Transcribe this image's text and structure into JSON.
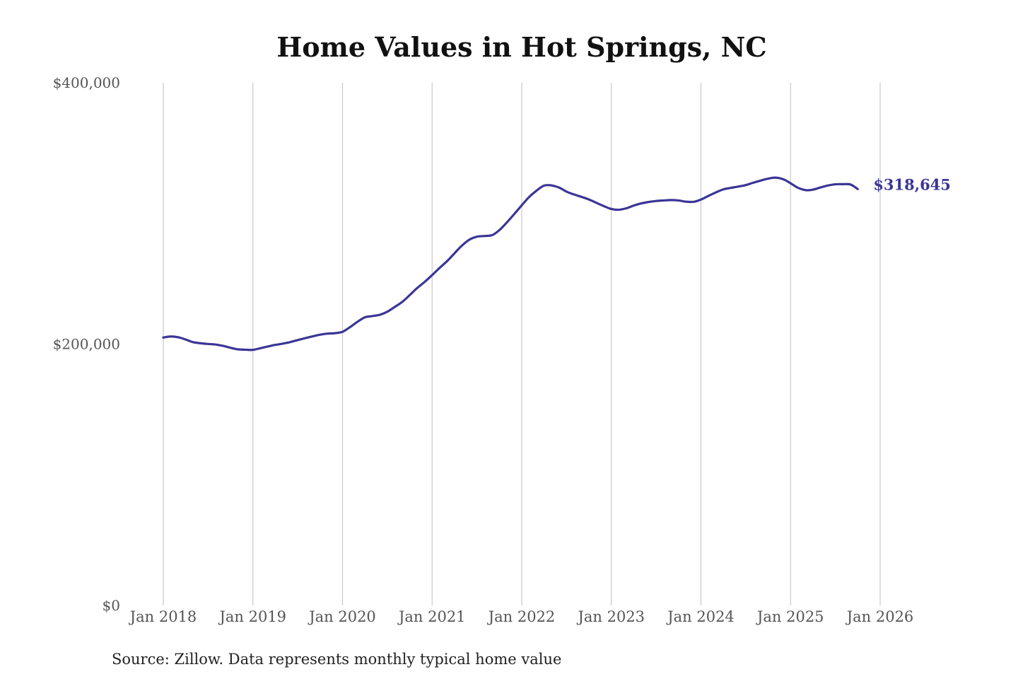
{
  "chart_data": {
    "type": "line",
    "title": "Home Values in Hot Springs, NC",
    "xlabel": "",
    "ylabel": "",
    "source": "Source: Zillow. Data represents monthly typical home value",
    "ylim": [
      0,
      400000
    ],
    "y_ticks": [
      {
        "value": 0,
        "label": "$0"
      },
      {
        "value": 200000,
        "label": "$200,000"
      },
      {
        "value": 400000,
        "label": "$400,000"
      }
    ],
    "x_ticks": [
      {
        "value": 2018,
        "label": "Jan 2018"
      },
      {
        "value": 2019,
        "label": "Jan 2019"
      },
      {
        "value": 2020,
        "label": "Jan 2020"
      },
      {
        "value": 2021,
        "label": "Jan 2021"
      },
      {
        "value": 2022,
        "label": "Jan 2022"
      },
      {
        "value": 2023,
        "label": "Jan 2023"
      },
      {
        "value": 2024,
        "label": "Jan 2024"
      },
      {
        "value": 2025,
        "label": "Jan 2025"
      },
      {
        "value": 2026,
        "label": "Jan 2026"
      }
    ],
    "xlim": [
      2018,
      2026
    ],
    "grid": "vertical",
    "color": "#3a3596",
    "series": [
      {
        "end_label": "$318,645",
        "points": [
          [
            2018.0,
            205000
          ],
          [
            2018.08,
            205800
          ],
          [
            2018.17,
            205200
          ],
          [
            2018.25,
            203500
          ],
          [
            2018.33,
            201500
          ],
          [
            2018.42,
            200600
          ],
          [
            2018.5,
            200100
          ],
          [
            2018.58,
            199700
          ],
          [
            2018.67,
            198600
          ],
          [
            2018.75,
            197200
          ],
          [
            2018.83,
            196000
          ],
          [
            2018.92,
            195700
          ],
          [
            2019.0,
            195600
          ],
          [
            2019.08,
            196800
          ],
          [
            2019.17,
            198200
          ],
          [
            2019.25,
            199400
          ],
          [
            2019.33,
            200300
          ],
          [
            2019.42,
            201600
          ],
          [
            2019.5,
            203100
          ],
          [
            2019.58,
            204500
          ],
          [
            2019.67,
            206000
          ],
          [
            2019.75,
            207200
          ],
          [
            2019.83,
            208000
          ],
          [
            2019.92,
            208400
          ],
          [
            2020.0,
            209400
          ],
          [
            2020.08,
            212800
          ],
          [
            2020.17,
            217200
          ],
          [
            2020.25,
            220500
          ],
          [
            2020.33,
            221400
          ],
          [
            2020.42,
            222500
          ],
          [
            2020.5,
            224800
          ],
          [
            2020.58,
            228300
          ],
          [
            2020.67,
            232500
          ],
          [
            2020.75,
            237500
          ],
          [
            2020.83,
            242700
          ],
          [
            2020.92,
            247800
          ],
          [
            2021.0,
            252800
          ],
          [
            2021.08,
            258100
          ],
          [
            2021.17,
            263700
          ],
          [
            2021.25,
            269500
          ],
          [
            2021.33,
            275200
          ],
          [
            2021.42,
            280100
          ],
          [
            2021.5,
            282200
          ],
          [
            2021.58,
            282700
          ],
          [
            2021.67,
            283400
          ],
          [
            2021.75,
            287200
          ],
          [
            2021.83,
            292800
          ],
          [
            2021.92,
            299800
          ],
          [
            2022.0,
            306200
          ],
          [
            2022.08,
            312400
          ],
          [
            2022.17,
            317700
          ],
          [
            2022.25,
            321300
          ],
          [
            2022.33,
            321500
          ],
          [
            2022.42,
            319700
          ],
          [
            2022.5,
            316700
          ],
          [
            2022.58,
            314600
          ],
          [
            2022.67,
            312600
          ],
          [
            2022.75,
            310700
          ],
          [
            2022.83,
            308200
          ],
          [
            2022.92,
            305500
          ],
          [
            2023.0,
            303400
          ],
          [
            2023.08,
            302800
          ],
          [
            2023.17,
            304000
          ],
          [
            2023.25,
            306000
          ],
          [
            2023.33,
            307600
          ],
          [
            2023.42,
            308800
          ],
          [
            2023.5,
            309500
          ],
          [
            2023.58,
            309900
          ],
          [
            2023.67,
            310200
          ],
          [
            2023.75,
            309900
          ],
          [
            2023.83,
            309000
          ],
          [
            2023.92,
            308900
          ],
          [
            2024.0,
            310600
          ],
          [
            2024.08,
            313300
          ],
          [
            2024.17,
            316200
          ],
          [
            2024.25,
            318400
          ],
          [
            2024.33,
            319500
          ],
          [
            2024.42,
            320600
          ],
          [
            2024.5,
            321700
          ],
          [
            2024.58,
            323400
          ],
          [
            2024.67,
            325200
          ],
          [
            2024.75,
            326600
          ],
          [
            2024.83,
            327400
          ],
          [
            2024.92,
            326100
          ],
          [
            2025.0,
            323100
          ],
          [
            2025.08,
            319700
          ],
          [
            2025.17,
            317800
          ],
          [
            2025.25,
            318200
          ],
          [
            2025.33,
            319800
          ],
          [
            2025.42,
            321400
          ],
          [
            2025.5,
            322300
          ],
          [
            2025.58,
            322400
          ],
          [
            2025.67,
            322100
          ],
          [
            2025.75,
            318645
          ]
        ]
      }
    ]
  }
}
